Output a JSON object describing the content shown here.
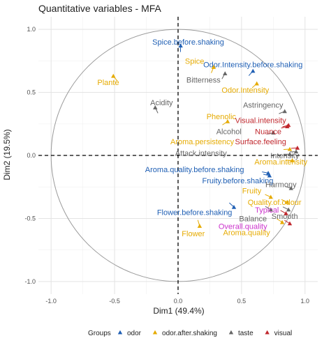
{
  "chart_data": {
    "type": "scatter",
    "title": "Quantitative variables - MFA",
    "xlabel": "Dim1 (49.4%)",
    "ylabel": "Dim2 (19.5%)",
    "xlim": [
      -1.1,
      1.1
    ],
    "ylim": [
      -1.1,
      1.1
    ],
    "x_ticks": [
      -1.0,
      -0.5,
      0.0,
      0.5,
      1.0
    ],
    "y_ticks": [
      -1.0,
      -0.5,
      0.0,
      0.5,
      1.0
    ],
    "x_tick_labels": [
      "-1.0",
      "-0.5",
      "0.0",
      "0.5",
      "1.0"
    ],
    "y_tick_labels": [
      "-1.0",
      "-0.5",
      "0.0",
      "0.5",
      "1.0"
    ],
    "grid": true,
    "correlation_circle": true,
    "reference_lines": "dashed at x=0 and y=0",
    "legend": {
      "title": "Groups",
      "placement": "bottom",
      "entries": [
        {
          "name": "odor",
          "color": "#1f5fb4"
        },
        {
          "name": "odor.after.shaking",
          "color": "#e6ab02"
        },
        {
          "name": "taste",
          "color": "#666666"
        },
        {
          "name": "visual",
          "color": "#c0272d"
        }
      ]
    },
    "points": [
      {
        "name": "Spice.before.shaking",
        "group": "odor",
        "x": 0.02,
        "y": 0.87,
        "lx": 0.08,
        "ly": 0.9
      },
      {
        "name": "Odor.Intensity.before.shaking",
        "group": "odor",
        "x": 0.59,
        "y": 0.67,
        "lx": 0.59,
        "ly": 0.72
      },
      {
        "name": "Aroma.quality.before.shaking",
        "group": "odor",
        "x": 0.71,
        "y": -0.14,
        "lx": 0.13,
        "ly": -0.11
      },
      {
        "name": "Fruity.before.shaking",
        "group": "odor",
        "x": 0.72,
        "y": -0.16,
        "lx": 0.47,
        "ly": -0.2
      },
      {
        "name": "Flower.before.shaking",
        "group": "odor",
        "x": 0.44,
        "y": -0.41,
        "lx": 0.13,
        "ly": -0.45
      },
      {
        "name": "Spice",
        "group": "odor.after.shaking",
        "x": 0.28,
        "y": 0.7,
        "lx": 0.13,
        "ly": 0.75
      },
      {
        "name": "Odor.Intensity",
        "group": "odor.after.shaking",
        "x": 0.62,
        "y": 0.57,
        "lx": 0.53,
        "ly": 0.52
      },
      {
        "name": "Plante",
        "group": "odor.after.shaking",
        "x": -0.51,
        "y": 0.63,
        "lx": -0.55,
        "ly": 0.58
      },
      {
        "name": "Phenolic",
        "group": "odor.after.shaking",
        "x": 0.39,
        "y": 0.27,
        "lx": 0.34,
        "ly": 0.31
      },
      {
        "name": "Aroma.persistency",
        "group": "odor.after.shaking",
        "x": 0.88,
        "y": 0.05,
        "lx": 0.19,
        "ly": 0.11
      },
      {
        "name": "Aroma.intensity",
        "group": "odor.after.shaking",
        "x": 0.9,
        "y": -0.04,
        "lx": 0.81,
        "ly": -0.05
      },
      {
        "name": "Fruity",
        "group": "odor.after.shaking",
        "x": 0.73,
        "y": -0.33,
        "lx": 0.58,
        "ly": -0.28
      },
      {
        "name": "Quality.of.odour",
        "group": "odor.after.shaking",
        "x": 0.86,
        "y": -0.37,
        "lx": 0.76,
        "ly": -0.37
      },
      {
        "name": "Flower",
        "group": "odor.after.shaking",
        "x": 0.17,
        "y": -0.56,
        "lx": 0.12,
        "ly": -0.62
      },
      {
        "name": "Aroma.quality",
        "group": "odor.after.shaking",
        "x": 0.82,
        "y": -0.53,
        "lx": 0.54,
        "ly": -0.61
      },
      {
        "name": "Acidity",
        "group": "taste",
        "x": -0.18,
        "y": 0.38,
        "lx": -0.13,
        "ly": 0.42
      },
      {
        "name": "Bitterness",
        "group": "taste",
        "x": 0.37,
        "y": 0.65,
        "lx": 0.2,
        "ly": 0.6
      },
      {
        "name": "Astringency",
        "group": "taste",
        "x": 0.84,
        "y": 0.35,
        "lx": 0.67,
        "ly": 0.4
      },
      {
        "name": "Alcohol",
        "group": "taste",
        "x": 0.75,
        "y": 0.18,
        "lx": 0.4,
        "ly": 0.19
      },
      {
        "name": "Attack.intensity",
        "group": "taste",
        "x": 0.93,
        "y": 0.03,
        "lx": 0.18,
        "ly": 0.02
      },
      {
        "name": "Intensity",
        "group": "taste",
        "x": 0.88,
        "y": 0.01,
        "lx": 0.84,
        "ly": 0.0
      },
      {
        "name": "Harmony",
        "group": "taste",
        "x": 0.89,
        "y": -0.26,
        "lx": 0.81,
        "ly": -0.23
      },
      {
        "name": "Balance",
        "group": "taste",
        "x": 0.73,
        "y": -0.43,
        "lx": 0.59,
        "ly": -0.5
      },
      {
        "name": "Smooth",
        "group": "taste",
        "x": 0.87,
        "y": -0.43,
        "lx": 0.84,
        "ly": -0.48
      },
      {
        "name": "Visual.intensity",
        "group": "visual",
        "x": 0.87,
        "y": 0.24,
        "lx": 0.65,
        "ly": 0.28
      },
      {
        "name": "Nuance",
        "group": "visual",
        "x": 0.86,
        "y": 0.23,
        "lx": 0.71,
        "ly": 0.19
      },
      {
        "name": "Surface.feeling",
        "group": "visual",
        "x": 0.94,
        "y": 0.06,
        "lx": 0.65,
        "ly": 0.11
      },
      {
        "name": "Typical",
        "group": "visual",
        "x": 0.85,
        "y": -0.46,
        "lx": 0.7,
        "ly": -0.43
      },
      {
        "name": "Overall.quality",
        "group": "visual",
        "x": 0.88,
        "y": -0.54,
        "lx": 0.51,
        "ly": -0.56
      }
    ],
    "label_overrides": {
      "Typical": "#cc33cc",
      "Overall.quality": "#cc33cc"
    }
  }
}
